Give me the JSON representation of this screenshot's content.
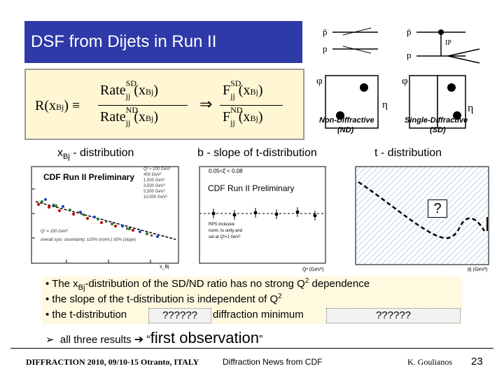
{
  "slide": {
    "title": "DSF from Dijets in Run II",
    "slide_number": "23"
  },
  "formula": {
    "lhs": "R(x",
    "lhs_sub": "Bj",
    "lhs_end": ") ≡",
    "num_rate": "Rate",
    "num_sup": "SD",
    "num_sub": "jj",
    "num_arg": "(x",
    "num_arg_sub": "Bj",
    "num_close": ")",
    "den_rate": "Rate",
    "den_sup": "ND",
    "den_sub": "jj",
    "den_arg": "(x",
    "den_arg_sub": "Bj",
    "den_close": ")",
    "implies": "⇒",
    "f_num": "F",
    "f_num_sup": "SD",
    "f_num_sub": "jj",
    "f_num_arg": "(x",
    "f_num_arg_sub": "Bj",
    "f_num_close": ")",
    "f_den": "F",
    "f_den_sup": "ND",
    "f_den_sub": "jj",
    "f_den_arg": "(x",
    "f_den_arg_sub": "Bj",
    "f_den_close": ")"
  },
  "diagrams": {
    "pbar": "p̄",
    "p": "p",
    "ip": "IP",
    "eta": "η",
    "phi": "φ",
    "nd_label": "Non-Diffractive",
    "nd_abbr": "(ND)",
    "sd_label": "Single-Diffractive",
    "sd_abbr": "(SD)"
  },
  "sections": {
    "xbj": "x",
    "xbj_sub": "Bj",
    "xbj_rest": " - distribution",
    "bslope": "b - slope of t-distribution",
    "tdist": "t - distribution"
  },
  "plots": {
    "left_label": "CDF Run II Preliminary",
    "mid_label": "CDF Run II Preliminary",
    "mid_inset": "0.05<ξ̄ < 0.08",
    "mid_note1": "RPS inclusive",
    "mid_note2": "norm. to unity and",
    "mid_note3": "set at Q²=1 GeV²",
    "mid_xaxis": "Q² (GeV²)",
    "right_xaxis": "|t| (GeV²)",
    "right_q": "?",
    "left_legend": [
      "Q² ≈ 100 GeV²",
      "400 GeV²",
      "1,500 GeV²",
      "3,500 GeV²",
      "5,500 GeV²",
      "10,000 GeV²"
    ],
    "left_note1": "Q² = 100 GeV²",
    "left_note2": "overall syst. uncertainty: ±20% (norm.) ±5% (slope)",
    "left_xaxis": "x_Bj"
  },
  "bullets": {
    "b1_pre": "The x",
    "b1_sub": "Bj",
    "b1_post": "-distribution of the SD/ND ratio has no strong Q",
    "b1_sup": "2",
    "b1_end": " dependence",
    "b2": "the slope of the t-distribution is independent of Q",
    "b2_sup": "2",
    "b3_pre": "the t-distribution",
    "b3_q1": "??????",
    "b3_mid": "diffraction minimum",
    "b3_q2": "??????",
    "conclusion_pre": "all three results",
    "conclusion_quote_open": "“",
    "conclusion_main": "first observation",
    "conclusion_quote_close": "”"
  },
  "footer": {
    "left": "DIFFRACTION 2010, 09/10-15 Otranto, ITALY",
    "center": "Diffraction News from CDF",
    "right": "K. Goulianos"
  }
}
